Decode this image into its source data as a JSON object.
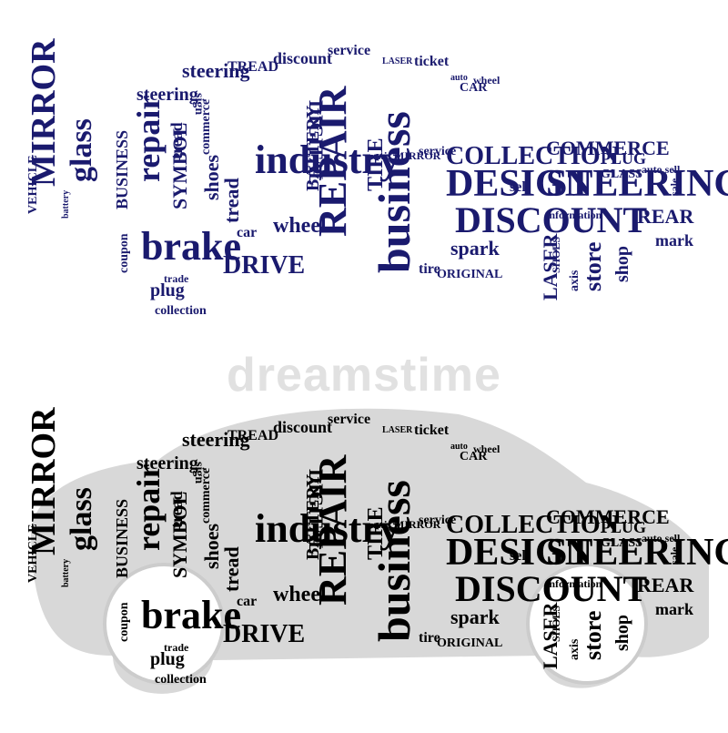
{
  "colors": {
    "top_car_words": "#1a1a6e",
    "bottom_car_words": "#000000",
    "bottom_car_shadow": "#d8d8d8",
    "watermark": "#c8c8c8"
  },
  "watermark": "dreamstime",
  "words": [
    "steering",
    "TREAD",
    "discount",
    "sign",
    "service",
    "LASER",
    "ticket",
    "steering",
    "DIGITAL",
    "CAR",
    "auto",
    "wheel",
    "MIRROR",
    "glass",
    "BUSINESS",
    "VEHICLE",
    "battery",
    "repair",
    "tread",
    "commerce",
    "SYMBOL",
    "shoes",
    "tread",
    "industry",
    "axis MIRROR",
    "service",
    "COLLECTION",
    "COMMERCE",
    "PLUG",
    "auto sell",
    "STEERING",
    "DESIGN",
    "REPAIR",
    "business",
    "DISCOUNT",
    "TIRE",
    "BATTERY",
    "REAR",
    "sale",
    "mark",
    "brake",
    "DRIVE",
    "wheel",
    "car",
    "spark",
    "tire",
    "ORIGINAL",
    "store",
    "LASER",
    "axis",
    "SHOES",
    "shop",
    "plug",
    "collection",
    "coupon",
    "trade",
    "sell",
    "GLASS",
    "information",
    "marketing",
    "price",
    "shoes commerce",
    "TREAD",
    "wheel",
    "label",
    "coupon",
    "BRAKE VEHICLE",
    "PROMOTION",
    "drive",
    "symbol",
    "digital",
    "sign"
  ]
}
